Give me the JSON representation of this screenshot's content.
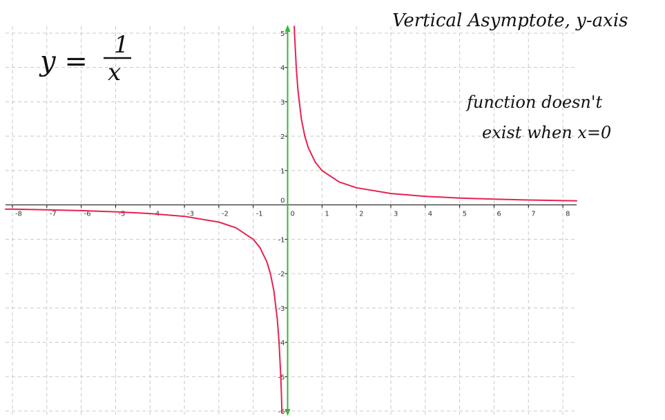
{
  "annotations": {
    "formula_lhs": "y =",
    "formula_num": "1",
    "formula_den": "x",
    "title": "Vertical Asymptote, y-axis",
    "note_line1": "function doesn't",
    "note_line2": "exist when x=0"
  },
  "colors": {
    "curve": "#e8204f",
    "asymptote": "#33b833",
    "grid": "#c8c8c8",
    "axis": "#000000"
  },
  "chart_data": {
    "type": "line",
    "function": "y = 1/x",
    "xlim": [
      -8.2,
      8.4
    ],
    "ylim": [
      -6.1,
      5.2
    ],
    "grid": true,
    "x_ticks": [
      -8,
      -7,
      -6,
      -5,
      -4,
      -3,
      -2,
      -1,
      0,
      1,
      2,
      3,
      4,
      5,
      6,
      7,
      8
    ],
    "y_ticks": [
      -6,
      -5,
      -4,
      -3,
      -2,
      -1,
      0,
      1,
      2,
      3,
      4,
      5
    ],
    "x_tick_labels": [
      "-8",
      "-7",
      "-6",
      "-5",
      "-4",
      "-3",
      "-2",
      "-1",
      "0",
      "1",
      "2",
      "3",
      "4",
      "5",
      "6",
      "7",
      "8"
    ],
    "y_tick_labels": [
      "-6",
      "-5",
      "-4",
      "-3",
      "-2",
      "-1",
      "0",
      "1",
      "2",
      "3",
      "4",
      "5"
    ],
    "series": [
      {
        "segment": "left",
        "x": [
          -8.2,
          -8,
          -7,
          -6,
          -5,
          -4,
          -3,
          -2,
          -1.5,
          -1,
          -0.8,
          -0.6,
          -0.5,
          -0.4,
          -0.3,
          -0.25,
          -0.2,
          -0.18,
          -0.165
        ],
        "y": [
          -0.122,
          -0.125,
          -0.143,
          -0.167,
          -0.2,
          -0.25,
          -0.333,
          -0.5,
          -0.667,
          -1,
          -1.25,
          -1.667,
          -2,
          -2.5,
          -3.333,
          -4,
          -5,
          -5.556,
          -6.06
        ]
      },
      {
        "segment": "right",
        "x": [
          0.192,
          0.2,
          0.25,
          0.3,
          0.4,
          0.5,
          0.6,
          0.8,
          1,
          1.5,
          2,
          3,
          4,
          5,
          6,
          7,
          8,
          8.4
        ],
        "y": [
          5.2,
          5,
          4,
          3.333,
          2.5,
          2,
          1.667,
          1.25,
          1,
          0.667,
          0.5,
          0.333,
          0.25,
          0.2,
          0.167,
          0.143,
          0.125,
          0.119
        ]
      }
    ],
    "asymptote_x": 0
  }
}
